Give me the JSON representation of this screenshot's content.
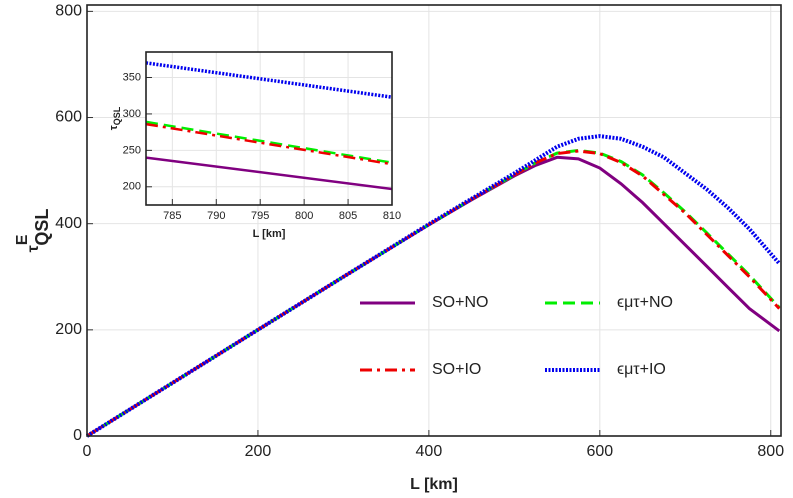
{
  "chart_data": [
    {
      "type": "line",
      "x_label": "L [km]",
      "y_label": {
        "base": "τ",
        "sup": "E",
        "sub": "QSL"
      },
      "x": [
        0,
        100,
        200,
        300,
        400,
        450,
        500,
        525,
        550,
        575,
        600,
        625,
        650,
        675,
        700,
        725,
        750,
        775,
        810
      ],
      "series": [
        {
          "name": "SO+NO",
          "color": "#800080",
          "dash": "solid",
          "values": [
            0,
            100,
            200,
            300,
            398,
            445,
            490,
            510,
            525,
            522,
            505,
            475,
            440,
            400,
            360,
            320,
            280,
            240,
            198
          ]
        },
        {
          "name": "ϵμτ+NO",
          "color": "#00ee00",
          "dash": "dashed",
          "values": [
            0,
            100,
            200,
            300,
            398,
            446,
            492,
            515,
            533,
            538,
            533,
            517,
            492,
            458,
            422,
            383,
            343,
            303,
            242
          ]
        },
        {
          "name": "SO+IO",
          "color": "#ee0000",
          "dash": "dashdot",
          "values": [
            0,
            100,
            200,
            300,
            398,
            446,
            492,
            515,
            532,
            537,
            532,
            515,
            490,
            455,
            420,
            380,
            340,
            300,
            240
          ]
        },
        {
          "name": "ϵμτ+IO",
          "color": "#0000ee",
          "dash": "dotted",
          "values": [
            0,
            100,
            200,
            300,
            399,
            447,
            495,
            520,
            545,
            560,
            565,
            560,
            545,
            525,
            495,
            465,
            430,
            390,
            325
          ]
        }
      ],
      "xlim": [
        0,
        812
      ],
      "ylim": [
        0,
        812
      ],
      "xticks": [
        0,
        200,
        400,
        600,
        800
      ],
      "yticks": [
        0,
        200,
        400,
        600,
        800
      ],
      "grid": true
    },
    {
      "type": "line",
      "x_label": "L [km]",
      "y_label": {
        "base": "τ",
        "sub": "QSL"
      },
      "x": [
        782,
        810
      ],
      "series": [
        {
          "color": "#800080",
          "dash": "solid",
          "values": [
            240,
            197
          ]
        },
        {
          "color": "#00ee00",
          "dash": "dashed",
          "values": [
            289,
            233
          ]
        },
        {
          "color": "#ee0000",
          "dash": "dashdot",
          "values": [
            286,
            231
          ]
        },
        {
          "color": "#0000ee",
          "dash": "dotted",
          "values": [
            370,
            323
          ]
        }
      ],
      "xlim": [
        782,
        810
      ],
      "ylim": [
        175,
        385
      ],
      "xticks": [
        785,
        790,
        795,
        800,
        805,
        810
      ],
      "yticks": [
        200,
        250,
        300,
        350
      ],
      "grid": true
    }
  ]
}
